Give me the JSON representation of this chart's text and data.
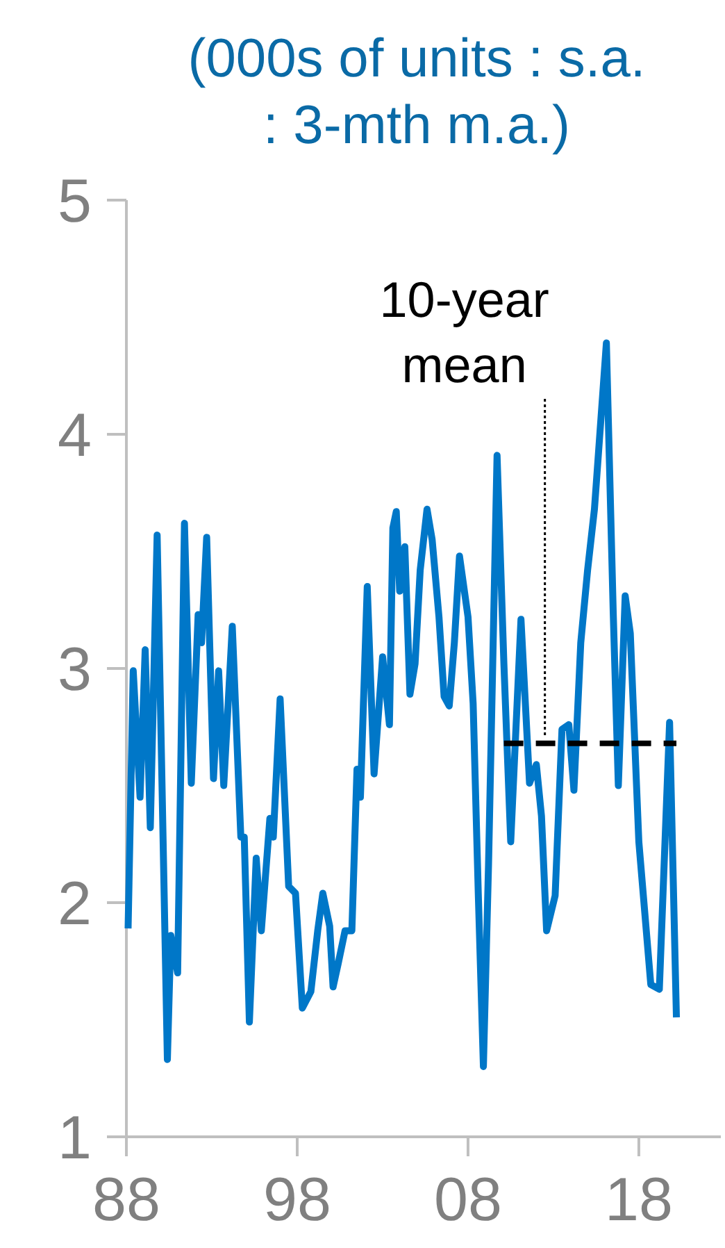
{
  "chart_data": {
    "type": "line",
    "title": "(000s of units : s.a. : 3-mth m.a.)",
    "xlim": [
      1988,
      2022.8
    ],
    "xticks": [
      {
        "value": 1988,
        "label": "88"
      },
      {
        "value": 1998,
        "label": "98"
      },
      {
        "value": 2008,
        "label": "08"
      },
      {
        "value": 2018,
        "label": "18"
      }
    ],
    "ylim": [
      1,
      5
    ],
    "yticks": [
      1,
      2,
      3,
      4,
      5
    ],
    "grid": false,
    "series": [
      {
        "color": "#0077c8",
        "line_style": "solid",
        "x": [
          1988.1,
          1988.4,
          1988.8,
          1989.1,
          1989.4,
          1989.8,
          1990.4,
          1990.6,
          1991.0,
          1991.4,
          1991.8,
          1992.2,
          1992.4,
          1992.7,
          1993.1,
          1993.4,
          1993.7,
          1994.2,
          1994.7,
          1994.9,
          1995.2,
          1995.6,
          1995.9,
          1996.4,
          1996.6,
          1997.0,
          1997.5,
          1997.9,
          1998.3,
          1998.8,
          1999.2,
          1999.5,
          1999.9,
          2000.1,
          2000.4,
          2000.8,
          2001.2,
          2001.5,
          2001.7,
          2002.1,
          2002.5,
          2003.0,
          2003.4,
          2003.6,
          2003.8,
          2004.0,
          2004.3,
          2004.6,
          2004.9,
          2005.2,
          2005.6,
          2005.9,
          2006.3,
          2006.6,
          2006.9,
          2007.2,
          2007.5,
          2008.0,
          2008.3,
          2008.6,
          2008.9,
          2009.2,
          2009.7,
          2010.1,
          2010.5,
          2011.1,
          2011.6,
          2012.0,
          2012.3,
          2012.6,
          2013.1,
          2013.5,
          2013.9,
          2014.2,
          2014.6,
          2015.0,
          2015.4,
          2016.1,
          2016.5,
          2016.8,
          2017.2,
          2017.5,
          2018.0,
          2018.7,
          2019.2,
          2019.8,
          2020.2
        ],
        "values": [
          1.89,
          2.99,
          2.45,
          3.08,
          2.32,
          3.57,
          1.33,
          1.86,
          1.7,
          3.62,
          2.51,
          3.23,
          3.11,
          3.56,
          2.53,
          2.99,
          2.5,
          3.18,
          2.28,
          2.28,
          1.49,
          2.19,
          1.88,
          2.36,
          2.28,
          2.87,
          2.07,
          2.04,
          1.55,
          1.62,
          1.88,
          2.04,
          1.9,
          1.64,
          1.74,
          1.88,
          1.88,
          2.57,
          2.45,
          3.35,
          2.55,
          3.05,
          2.76,
          3.6,
          3.67,
          3.33,
          3.52,
          2.89,
          3.02,
          3.42,
          3.68,
          3.55,
          3.22,
          2.88,
          2.84,
          3.11,
          3.48,
          3.22,
          2.85,
          2.04,
          1.3,
          2.16,
          3.91,
          3.02,
          2.26,
          3.21,
          2.51,
          2.59,
          2.37,
          1.88,
          2.03,
          2.74,
          2.76,
          2.48,
          3.11,
          3.42,
          3.68,
          4.39,
          3.24,
          2.5,
          3.31,
          3.15,
          2.26,
          1.65,
          1.63,
          2.77,
          1.51
        ]
      },
      {
        "color": "#000000",
        "line_style": "dashed",
        "x": [
          2010.1,
          2020.2
        ],
        "values": [
          2.68,
          2.68
        ]
      }
    ],
    "annotations": [
      {
        "text": "10-year mean",
        "x": 2012.5,
        "y": 2.68
      }
    ]
  }
}
